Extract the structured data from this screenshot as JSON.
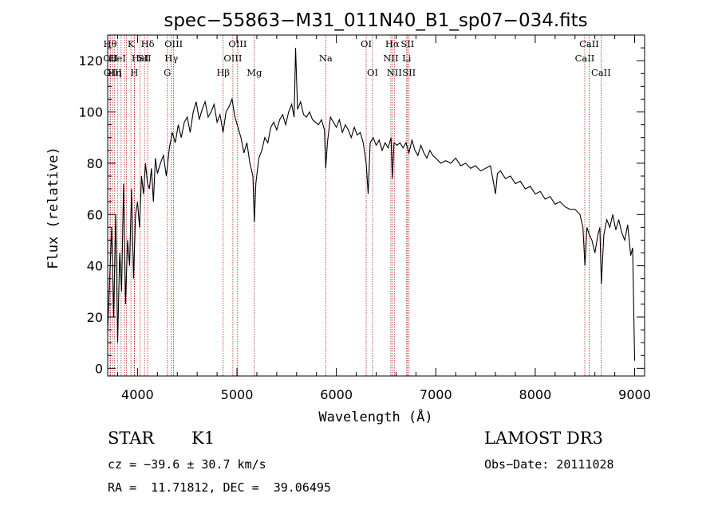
{
  "chart_data": {
    "type": "line",
    "title": "spec−55863−M31_011N40_B1_sp07−034.fits",
    "xlabel": "Wavelength (Å)",
    "ylabel": "Flux (relative)",
    "xlim": [
      3700,
      9100
    ],
    "ylim": [
      -3,
      130
    ],
    "x_ticks": [
      4000,
      5000,
      6000,
      7000,
      8000,
      9000
    ],
    "y_ticks": [
      0,
      20,
      40,
      60,
      80,
      100,
      120
    ],
    "grid": false,
    "line_color": "#000000",
    "marker_color": "#b22222",
    "series": [
      {
        "x": [
          3700,
          3720,
          3740,
          3760,
          3780,
          3800,
          3820,
          3840,
          3860,
          3880,
          3900,
          3920,
          3940,
          3960,
          3980,
          4000,
          4020,
          4040,
          4060,
          4080,
          4100,
          4120,
          4140,
          4160,
          4180,
          4200,
          4230,
          4260,
          4290,
          4320,
          4350,
          4380,
          4410,
          4440,
          4470,
          4500,
          4530,
          4560,
          4590,
          4620,
          4650,
          4680,
          4710,
          4740,
          4770,
          4800,
          4830,
          4860,
          4890,
          4920,
          4950,
          4980,
          5010,
          5040,
          5070,
          5100,
          5130,
          5160,
          5175,
          5190,
          5220,
          5250,
          5280,
          5310,
          5340,
          5370,
          5400,
          5430,
          5460,
          5490,
          5520,
          5550,
          5575,
          5590,
          5610,
          5640,
          5670,
          5700,
          5730,
          5760,
          5790,
          5820,
          5850,
          5880,
          5893,
          5910,
          5940,
          5970,
          6000,
          6030,
          6060,
          6090,
          6120,
          6150,
          6180,
          6210,
          6240,
          6270,
          6300,
          6320,
          6340,
          6370,
          6400,
          6430,
          6460,
          6490,
          6520,
          6550,
          6563,
          6580,
          6610,
          6640,
          6670,
          6700,
          6730,
          6760,
          6790,
          6820,
          6850,
          6880,
          6910,
          6940,
          6970,
          7000,
          7050,
          7100,
          7150,
          7200,
          7250,
          7300,
          7350,
          7400,
          7450,
          7500,
          7550,
          7600,
          7620,
          7650,
          7700,
          7750,
          7800,
          7850,
          7900,
          7950,
          8000,
          8050,
          8100,
          8150,
          8200,
          8250,
          8300,
          8350,
          8400,
          8450,
          8480,
          8500,
          8520,
          8545,
          8570,
          8600,
          8630,
          8650,
          8665,
          8690,
          8720,
          8750,
          8780,
          8810,
          8840,
          8870,
          8900,
          8930,
          8960,
          8980,
          9000
        ],
        "y": [
          15,
          35,
          55,
          20,
          60,
          10,
          45,
          30,
          72,
          25,
          50,
          40,
          70,
          35,
          60,
          65,
          55,
          75,
          68,
          80,
          72,
          70,
          78,
          65,
          82,
          76,
          80,
          83,
          75,
          86,
          92,
          88,
          95,
          90,
          96,
          98,
          92,
          100,
          104,
          97,
          101,
          104,
          98,
          100,
          103,
          96,
          99,
          92,
          100,
          102,
          105,
          98,
          94,
          90,
          84,
          88,
          80,
          75,
          57,
          72,
          82,
          85,
          90,
          88,
          94,
          96,
          93,
          97,
          99,
          95,
          100,
          103,
          98,
          125,
          101,
          104,
          99,
          98,
          100,
          97,
          96,
          95,
          97,
          93,
          78,
          88,
          98,
          96,
          94,
          97,
          92,
          95,
          93,
          90,
          94,
          91,
          92,
          88,
          80,
          68,
          88,
          90,
          87,
          89,
          85,
          88,
          86,
          90,
          74,
          88,
          87,
          88,
          86,
          88,
          84,
          89,
          85,
          83,
          87,
          84,
          82,
          85,
          83,
          82,
          80,
          81,
          80,
          82,
          79,
          80,
          78,
          79,
          77,
          78,
          79,
          68,
          76,
          77,
          74,
          75,
          72,
          73,
          70,
          71,
          68,
          69,
          66,
          67,
          64,
          65,
          63,
          62,
          62,
          60,
          55,
          40,
          55,
          52,
          50,
          45,
          52,
          55,
          33,
          52,
          58,
          55,
          60,
          54,
          58,
          53,
          50,
          56,
          44,
          47,
          3
        ]
      }
    ],
    "line_markers": [
      {
        "x": 3724,
        "label": "Hθ",
        "row": 0
      },
      {
        "x": 3728,
        "label": "OII",
        "row": 1
      },
      {
        "x": 3750,
        "label": "OIII",
        "row": 2
      },
      {
        "x": 3770,
        "label": "Hη",
        "row": 2
      },
      {
        "x": 3798,
        "label": "HeI",
        "row": 1
      },
      {
        "x": 3835,
        "label": "",
        "row": 0
      },
      {
        "x": 3869,
        "label": "",
        "row": 0
      },
      {
        "x": 3889,
        "label": "",
        "row": 0
      },
      {
        "x": 3934,
        "label": "K",
        "row": 0
      },
      {
        "x": 3968,
        "label": "H",
        "row": 2
      },
      {
        "x": 3970,
        "label": "",
        "row": 0
      },
      {
        "x": 4026,
        "label": "HeI",
        "row": 1
      },
      {
        "x": 4070,
        "label": "SII",
        "row": 1
      },
      {
        "x": 4102,
        "label": "Hδ",
        "row": 0
      },
      {
        "x": 4300,
        "label": "G",
        "row": 2
      },
      {
        "x": 4340,
        "label": "Hγ",
        "row": 1
      },
      {
        "x": 4363,
        "label": "OIII",
        "row": 0
      },
      {
        "x": 4861,
        "label": "Hβ",
        "row": 2
      },
      {
        "x": 4959,
        "label": "OIII",
        "row": 1
      },
      {
        "x": 5007,
        "label": "OIII",
        "row": 0
      },
      {
        "x": 5175,
        "label": "Mg",
        "row": 2
      },
      {
        "x": 5893,
        "label": "Na",
        "row": 1
      },
      {
        "x": 6300,
        "label": "OI",
        "row": 0
      },
      {
        "x": 6364,
        "label": "OI",
        "row": 2
      },
      {
        "x": 6548,
        "label": "NII",
        "row": 1
      },
      {
        "x": 6563,
        "label": "Hα",
        "row": 0
      },
      {
        "x": 6583,
        "label": "NII",
        "row": 2
      },
      {
        "x": 6707,
        "label": "Li",
        "row": 1
      },
      {
        "x": 6716,
        "label": "SII",
        "row": 0
      },
      {
        "x": 6731,
        "label": "SII",
        "row": 2
      },
      {
        "x": 8498,
        "label": "CaII",
        "row": 1
      },
      {
        "x": 8542,
        "label": "CaII",
        "row": 0
      },
      {
        "x": 8662,
        "label": "CaII",
        "row": 2
      }
    ]
  },
  "info": {
    "class": "STAR",
    "subclass": "K1",
    "survey": "LAMOST DR3",
    "cz": "cz = −39.6 ± 30.7 km/s",
    "obs_date": "Obs−Date: 20111028",
    "radec": "RA =  11.71812, DEC =  39.06495"
  }
}
